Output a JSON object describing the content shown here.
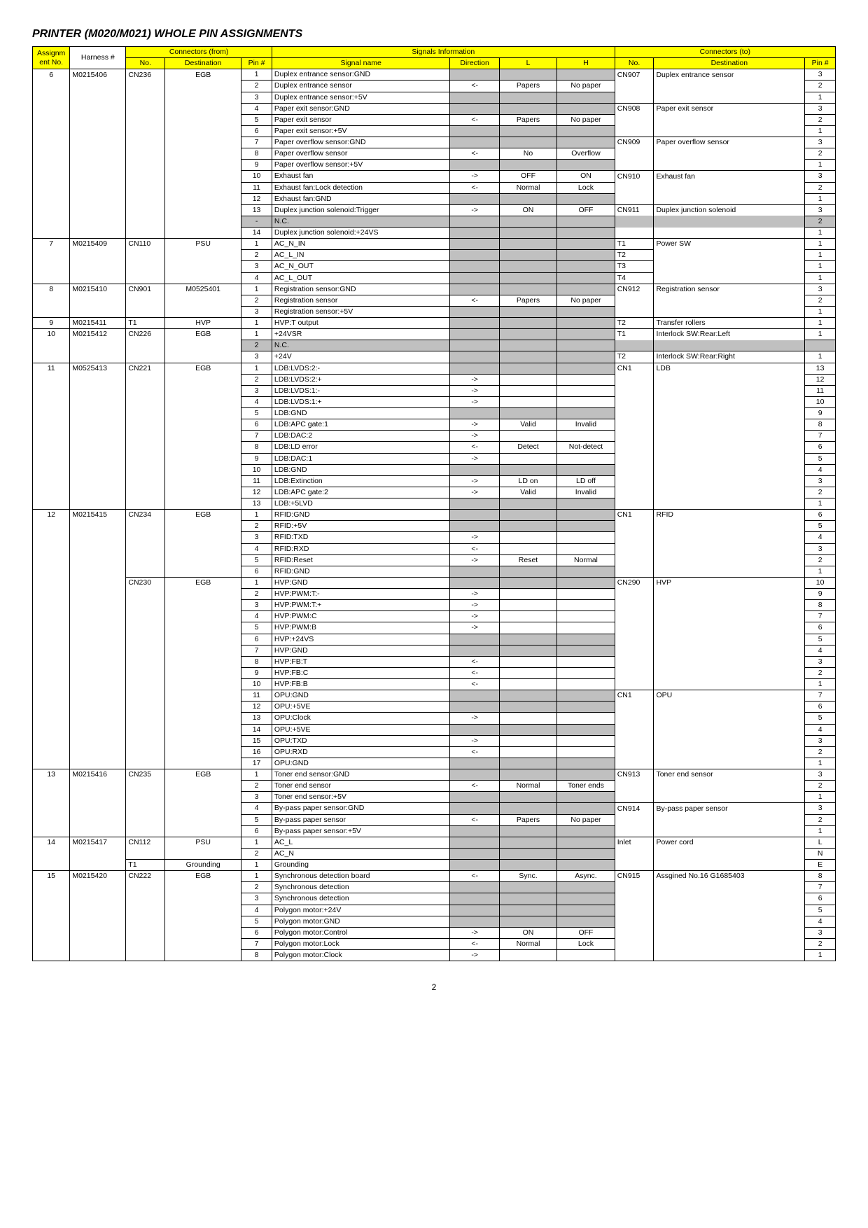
{
  "title": "PRINTER (M020/M021) WHOLE PIN ASSIGNMENTS",
  "page_number": "2",
  "header_bg": "#ffff00",
  "gray_bg": "#c0c0c0",
  "columns": {
    "group_from": "Connectors (from)",
    "group_sig": "Signals Information",
    "group_to": "Connectors (to)",
    "h1": "Assignm ent No.",
    "h2": "Harness #",
    "h3": "No.",
    "h4": "Destination",
    "h5": "Pin #",
    "h6": "Signal   name",
    "h7": "Direction",
    "h8": "L",
    "h9": "H",
    "h10": "No.",
    "h11": "Destination",
    "h12": "Pin #"
  },
  "rows": [
    {
      "a": "6",
      "h": "M0215406",
      "fno": "CN236",
      "fd": "EGB",
      "pin": "1",
      "sig": "Duplex entrance sensor:GND",
      "dir": "",
      "L": "",
      "H": "",
      "tno": "CN907",
      "td": "Duplex entrance sensor",
      "tp": "3",
      "gray": true
    },
    {
      "a": "",
      "h": "",
      "fno": "",
      "fd": "",
      "pin": "2",
      "sig": "Duplex entrance sensor",
      "dir": "<-",
      "L": "Papers",
      "H": "No paper",
      "tno": "",
      "td": "",
      "tp": "2"
    },
    {
      "a": "",
      "h": "",
      "fno": "",
      "fd": "",
      "pin": "3",
      "sig": "Duplex entrance sensor:+5V",
      "dir": "",
      "L": "",
      "H": "",
      "tno": "",
      "td": "",
      "tp": "1",
      "gray": true
    },
    {
      "a": "",
      "h": "",
      "fno": "",
      "fd": "",
      "pin": "4",
      "sig": "Paper exit sensor:GND",
      "dir": "",
      "L": "",
      "H": "",
      "tno": "CN908",
      "td": "Paper exit sensor",
      "tp": "3",
      "gray": true
    },
    {
      "a": "",
      "h": "",
      "fno": "",
      "fd": "",
      "pin": "5",
      "sig": "Paper exit sensor",
      "dir": "<-",
      "L": "Papers",
      "H": "No paper",
      "tno": "",
      "td": "",
      "tp": "2"
    },
    {
      "a": "",
      "h": "",
      "fno": "",
      "fd": "",
      "pin": "6",
      "sig": "Paper exit sensor:+5V",
      "dir": "",
      "L": "",
      "H": "",
      "tno": "",
      "td": "",
      "tp": "1",
      "gray": true
    },
    {
      "a": "",
      "h": "",
      "fno": "",
      "fd": "",
      "pin": "7",
      "sig": "Paper overflow sensor:GND",
      "dir": "",
      "L": "",
      "H": "",
      "tno": "CN909",
      "td": "Paper overflow sensor",
      "tp": "3",
      "gray": true
    },
    {
      "a": "",
      "h": "",
      "fno": "",
      "fd": "",
      "pin": "8",
      "sig": "Paper overflow sensor",
      "dir": "<-",
      "L": "No",
      "H": "Overflow",
      "tno": "",
      "td": "",
      "tp": "2"
    },
    {
      "a": "",
      "h": "",
      "fno": "",
      "fd": "",
      "pin": "9",
      "sig": "Paper overflow sensor:+5V",
      "dir": "",
      "L": "",
      "H": "",
      "tno": "",
      "td": "",
      "tp": "1",
      "gray": true
    },
    {
      "a": "",
      "h": "",
      "fno": "",
      "fd": "",
      "pin": "10",
      "sig": "Exhaust fan",
      "dir": "->",
      "L": "OFF",
      "H": "ON",
      "tno": "CN910",
      "td": "Exhaust fan",
      "tp": "3"
    },
    {
      "a": "",
      "h": "",
      "fno": "",
      "fd": "",
      "pin": "11",
      "sig": "Exhaust fan:Lock detection",
      "dir": "<-",
      "L": "Normal",
      "H": "Lock",
      "tno": "",
      "td": "",
      "tp": "2"
    },
    {
      "a": "",
      "h": "",
      "fno": "",
      "fd": "",
      "pin": "12",
      "sig": "Exhaust fan:GND",
      "dir": "",
      "L": "",
      "H": "",
      "tno": "",
      "td": "",
      "tp": "1",
      "gray": true
    },
    {
      "a": "",
      "h": "",
      "fno": "",
      "fd": "",
      "pin": "13",
      "sig": "Duplex junction solenoid:Trigger",
      "dir": "->",
      "L": "ON",
      "H": "OFF",
      "tno": "CN911",
      "td": "Duplex junction solenoid",
      "tp": "3"
    },
    {
      "a": "",
      "h": "",
      "fno": "",
      "fd": "",
      "pin": "-",
      "sig": "N.C.",
      "dir": "",
      "L": "",
      "H": "",
      "tno": "",
      "td": "",
      "tp": "2",
      "nc": true
    },
    {
      "a": "",
      "h": "",
      "fno": "",
      "fd": "",
      "pin": "14",
      "sig": "Duplex junction solenoid:+24VS",
      "dir": "",
      "L": "",
      "H": "",
      "tno": "",
      "td": "",
      "tp": "1",
      "gray": true
    },
    {
      "a": "7",
      "h": "M0215409",
      "fno": "CN110",
      "fd": "PSU",
      "pin": "1",
      "sig": "AC_N_IN",
      "dir": "",
      "L": "",
      "H": "",
      "tno": "T1",
      "td": "Power SW",
      "tp": "1",
      "gray": true
    },
    {
      "a": "",
      "h": "",
      "fno": "",
      "fd": "",
      "pin": "2",
      "sig": "AC_L_IN",
      "dir": "",
      "L": "",
      "H": "",
      "tno": "T2",
      "td": "",
      "tp": "1",
      "gray": true
    },
    {
      "a": "",
      "h": "",
      "fno": "",
      "fd": "",
      "pin": "3",
      "sig": "AC_N_OUT",
      "dir": "",
      "L": "",
      "H": "",
      "tno": "T3",
      "td": "",
      "tp": "1",
      "gray": true
    },
    {
      "a": "",
      "h": "",
      "fno": "",
      "fd": "",
      "pin": "4",
      "sig": "AC_L_OUT",
      "dir": "",
      "L": "",
      "H": "",
      "tno": "T4",
      "td": "",
      "tp": "1",
      "gray": true
    },
    {
      "a": "8",
      "h": "M0215410",
      "fno": "CN901",
      "fd": "M0525401",
      "pin": "1",
      "sig": "Registration sensor:GND",
      "dir": "",
      "L": "",
      "H": "",
      "tno": "CN912",
      "td": "Registration sensor",
      "tp": "3",
      "gray": true
    },
    {
      "a": "",
      "h": "",
      "fno": "",
      "fd": "",
      "pin": "2",
      "sig": "Registration sensor",
      "dir": "<-",
      "L": "Papers",
      "H": "No paper",
      "tno": "",
      "td": "",
      "tp": "2"
    },
    {
      "a": "",
      "h": "",
      "fno": "",
      "fd": "",
      "pin": "3",
      "sig": "Registration sensor:+5V",
      "dir": "",
      "L": "",
      "H": "",
      "tno": "",
      "td": "",
      "tp": "1",
      "gray": true
    },
    {
      "a": "9",
      "h": "M0215411",
      "fno": "T1",
      "fd": "HVP",
      "pin": "1",
      "sig": "HVP:T output",
      "dir": "",
      "L": "",
      "H": "",
      "tno": "T2",
      "td": "Transfer rollers",
      "tp": "1",
      "gray": true
    },
    {
      "a": "10",
      "h": "M0215412",
      "fno": "CN226",
      "fd": "EGB",
      "pin": "1",
      "sig": "+24VSR",
      "dir": "",
      "L": "",
      "H": "",
      "tno": "T1",
      "td": "Interlock SW:Rear:Left",
      "tp": "1",
      "gray": true
    },
    {
      "a": "",
      "h": "",
      "fno": "",
      "fd": "",
      "pin": "2",
      "sig": "N.C.",
      "dir": "",
      "L": "",
      "H": "",
      "tno": "",
      "td": "",
      "tp": "",
      "nc": true
    },
    {
      "a": "",
      "h": "",
      "fno": "",
      "fd": "",
      "pin": "3",
      "sig": "+24V",
      "dir": "",
      "L": "",
      "H": "",
      "tno": "T2",
      "td": "Interlock SW:Rear:Right",
      "tp": "1",
      "gray": true
    },
    {
      "a": "11",
      "h": "M0525413",
      "fno": "CN221",
      "fd": "EGB",
      "pin": "1",
      "sig": "LDB:LVDS:2:-",
      "dir": "",
      "L": "",
      "H": "",
      "tno": "CN1",
      "td": "LDB",
      "tp": "13",
      "gray": true
    },
    {
      "a": "",
      "h": "",
      "fno": "",
      "fd": "",
      "pin": "2",
      "sig": "LDB:LVDS:2:+",
      "dir": "->",
      "L": "",
      "H": "",
      "tno": "",
      "td": "",
      "tp": "12"
    },
    {
      "a": "",
      "h": "",
      "fno": "",
      "fd": "",
      "pin": "3",
      "sig": "LDB:LVDS:1:-",
      "dir": "->",
      "L": "",
      "H": "",
      "tno": "",
      "td": "",
      "tp": "11"
    },
    {
      "a": "",
      "h": "",
      "fno": "",
      "fd": "",
      "pin": "4",
      "sig": "LDB:LVDS:1:+",
      "dir": "->",
      "L": "",
      "H": "",
      "tno": "",
      "td": "",
      "tp": "10"
    },
    {
      "a": "",
      "h": "",
      "fno": "",
      "fd": "",
      "pin": "5",
      "sig": "LDB:GND",
      "dir": "",
      "L": "",
      "H": "",
      "tno": "",
      "td": "",
      "tp": "9",
      "gray": true
    },
    {
      "a": "",
      "h": "",
      "fno": "",
      "fd": "",
      "pin": "6",
      "sig": "LDB:APC gate:1",
      "dir": "->",
      "L": "Valid",
      "H": "Invalid",
      "tno": "",
      "td": "",
      "tp": "8"
    },
    {
      "a": "",
      "h": "",
      "fno": "",
      "fd": "",
      "pin": "7",
      "sig": "LDB:DAC:2",
      "dir": "->",
      "L": "",
      "H": "",
      "tno": "",
      "td": "",
      "tp": "7"
    },
    {
      "a": "",
      "h": "",
      "fno": "",
      "fd": "",
      "pin": "8",
      "sig": "LDB:LD error",
      "dir": "<-",
      "L": "Detect",
      "H": "Not-detect",
      "tno": "",
      "td": "",
      "tp": "6"
    },
    {
      "a": "",
      "h": "",
      "fno": "",
      "fd": "",
      "pin": "9",
      "sig": "LDB:DAC:1",
      "dir": "->",
      "L": "",
      "H": "",
      "tno": "",
      "td": "",
      "tp": "5"
    },
    {
      "a": "",
      "h": "",
      "fno": "",
      "fd": "",
      "pin": "10",
      "sig": "LDB:GND",
      "dir": "",
      "L": "",
      "H": "",
      "tno": "",
      "td": "",
      "tp": "4",
      "gray": true
    },
    {
      "a": "",
      "h": "",
      "fno": "",
      "fd": "",
      "pin": "11",
      "sig": "LDB:Extinction",
      "dir": "->",
      "L": "LD on",
      "H": "LD off",
      "tno": "",
      "td": "",
      "tp": "3"
    },
    {
      "a": "",
      "h": "",
      "fno": "",
      "fd": "",
      "pin": "12",
      "sig": "LDB:APC gate:2",
      "dir": "->",
      "L": "Valid",
      "H": "Invalid",
      "tno": "",
      "td": "",
      "tp": "2"
    },
    {
      "a": "",
      "h": "",
      "fno": "",
      "fd": "",
      "pin": "13",
      "sig": "LDB:+5LVD",
      "dir": "",
      "L": "",
      "H": "",
      "tno": "",
      "td": "",
      "tp": "1",
      "gray": true
    },
    {
      "a": "12",
      "h": "M0215415",
      "fno": "CN234",
      "fd": "EGB",
      "pin": "1",
      "sig": "RFID:GND",
      "dir": "",
      "L": "",
      "H": "",
      "tno": "CN1",
      "td": "RFID",
      "tp": "6",
      "gray": true
    },
    {
      "a": "",
      "h": "",
      "fno": "",
      "fd": "",
      "pin": "2",
      "sig": "RFID:+5V",
      "dir": "",
      "L": "",
      "H": "",
      "tno": "",
      "td": "",
      "tp": "5",
      "gray": true
    },
    {
      "a": "",
      "h": "",
      "fno": "",
      "fd": "",
      "pin": "3",
      "sig": "RFID:TXD",
      "dir": "->",
      "L": "",
      "H": "",
      "tno": "",
      "td": "",
      "tp": "4"
    },
    {
      "a": "",
      "h": "",
      "fno": "",
      "fd": "",
      "pin": "4",
      "sig": "RFID:RXD",
      "dir": "<-",
      "L": "",
      "H": "",
      "tno": "",
      "td": "",
      "tp": "3"
    },
    {
      "a": "",
      "h": "",
      "fno": "",
      "fd": "",
      "pin": "5",
      "sig": "RFID:Reset",
      "dir": "->",
      "L": "Reset",
      "H": "Normal",
      "tno": "",
      "td": "",
      "tp": "2"
    },
    {
      "a": "",
      "h": "",
      "fno": "",
      "fd": "",
      "pin": "6",
      "sig": "RFID:GND",
      "dir": "",
      "L": "",
      "H": "",
      "tno": "",
      "td": "",
      "tp": "1",
      "gray": true
    },
    {
      "a": "",
      "h": "",
      "fno": "CN230",
      "fd": "EGB",
      "pin": "1",
      "sig": "HVP:GND",
      "dir": "",
      "L": "",
      "H": "",
      "tno": "CN290",
      "td": "HVP",
      "tp": "10",
      "gray": true
    },
    {
      "a": "",
      "h": "",
      "fno": "",
      "fd": "",
      "pin": "2",
      "sig": "HVP:PWM:T:-",
      "dir": "->",
      "L": "",
      "H": "",
      "tno": "",
      "td": "",
      "tp": "9"
    },
    {
      "a": "",
      "h": "",
      "fno": "",
      "fd": "",
      "pin": "3",
      "sig": "HVP:PWM:T:+",
      "dir": "->",
      "L": "",
      "H": "",
      "tno": "",
      "td": "",
      "tp": "8"
    },
    {
      "a": "",
      "h": "",
      "fno": "",
      "fd": "",
      "pin": "4",
      "sig": "HVP:PWM:C",
      "dir": "->",
      "L": "",
      "H": "",
      "tno": "",
      "td": "",
      "tp": "7"
    },
    {
      "a": "",
      "h": "",
      "fno": "",
      "fd": "",
      "pin": "5",
      "sig": "HVP:PWM:B",
      "dir": "->",
      "L": "",
      "H": "",
      "tno": "",
      "td": "",
      "tp": "6"
    },
    {
      "a": "",
      "h": "",
      "fno": "",
      "fd": "",
      "pin": "6",
      "sig": "HVP:+24VS",
      "dir": "",
      "L": "",
      "H": "",
      "tno": "",
      "td": "",
      "tp": "5",
      "gray": true
    },
    {
      "a": "",
      "h": "",
      "fno": "",
      "fd": "",
      "pin": "7",
      "sig": "HVP:GND",
      "dir": "",
      "L": "",
      "H": "",
      "tno": "",
      "td": "",
      "tp": "4",
      "gray": true
    },
    {
      "a": "",
      "h": "",
      "fno": "",
      "fd": "",
      "pin": "8",
      "sig": "HVP:FB:T",
      "dir": "<-",
      "L": "",
      "H": "",
      "tno": "",
      "td": "",
      "tp": "3"
    },
    {
      "a": "",
      "h": "",
      "fno": "",
      "fd": "",
      "pin": "9",
      "sig": "HVP:FB:C",
      "dir": "<-",
      "L": "",
      "H": "",
      "tno": "",
      "td": "",
      "tp": "2"
    },
    {
      "a": "",
      "h": "",
      "fno": "",
      "fd": "",
      "pin": "10",
      "sig": "HVP:FB:B",
      "dir": "<-",
      "L": "",
      "H": "",
      "tno": "",
      "td": "",
      "tp": "1"
    },
    {
      "a": "",
      "h": "",
      "fno": "",
      "fd": "",
      "pin": "11",
      "sig": "OPU:GND",
      "dir": "",
      "L": "",
      "H": "",
      "tno": "CN1",
      "td": "OPU",
      "tp": "7",
      "gray": true
    },
    {
      "a": "",
      "h": "",
      "fno": "",
      "fd": "",
      "pin": "12",
      "sig": "OPU:+5VE",
      "dir": "",
      "L": "",
      "H": "",
      "tno": "",
      "td": "",
      "tp": "6",
      "gray": true
    },
    {
      "a": "",
      "h": "",
      "fno": "",
      "fd": "",
      "pin": "13",
      "sig": "OPU:Clock",
      "dir": "->",
      "L": "",
      "H": "",
      "tno": "",
      "td": "",
      "tp": "5"
    },
    {
      "a": "",
      "h": "",
      "fno": "",
      "fd": "",
      "pin": "14",
      "sig": "OPU:+5VE",
      "dir": "",
      "L": "",
      "H": "",
      "tno": "",
      "td": "",
      "tp": "4",
      "gray": true
    },
    {
      "a": "",
      "h": "",
      "fno": "",
      "fd": "",
      "pin": "15",
      "sig": "OPU:TXD",
      "dir": "->",
      "L": "",
      "H": "",
      "tno": "",
      "td": "",
      "tp": "3"
    },
    {
      "a": "",
      "h": "",
      "fno": "",
      "fd": "",
      "pin": "16",
      "sig": "OPU:RXD",
      "dir": "<-",
      "L": "",
      "H": "",
      "tno": "",
      "td": "",
      "tp": "2"
    },
    {
      "a": "",
      "h": "",
      "fno": "",
      "fd": "",
      "pin": "17",
      "sig": "OPU:GND",
      "dir": "",
      "L": "",
      "H": "",
      "tno": "",
      "td": "",
      "tp": "1",
      "gray": true
    },
    {
      "a": "13",
      "h": "M0215416",
      "fno": "CN235",
      "fd": "EGB",
      "pin": "1",
      "sig": "Toner end sensor:GND",
      "dir": "",
      "L": "",
      "H": "",
      "tno": "CN913",
      "td": "Toner end sensor",
      "tp": "3",
      "gray": true
    },
    {
      "a": "",
      "h": "",
      "fno": "",
      "fd": "",
      "pin": "2",
      "sig": "Toner end sensor",
      "dir": "<-",
      "L": "Normal",
      "H": "Toner ends",
      "tno": "",
      "td": "",
      "tp": "2"
    },
    {
      "a": "",
      "h": "",
      "fno": "",
      "fd": "",
      "pin": "3",
      "sig": "Toner end sensor:+5V",
      "dir": "",
      "L": "",
      "H": "",
      "tno": "",
      "td": "",
      "tp": "1",
      "gray": true
    },
    {
      "a": "",
      "h": "",
      "fno": "",
      "fd": "",
      "pin": "4",
      "sig": "By-pass paper sensor:GND",
      "dir": "",
      "L": "",
      "H": "",
      "tno": "CN914",
      "td": "By-pass paper sensor",
      "tp": "3",
      "gray": true
    },
    {
      "a": "",
      "h": "",
      "fno": "",
      "fd": "",
      "pin": "5",
      "sig": "By-pass paper sensor",
      "dir": "<-",
      "L": "Papers",
      "H": "No paper",
      "tno": "",
      "td": "",
      "tp": "2"
    },
    {
      "a": "",
      "h": "",
      "fno": "",
      "fd": "",
      "pin": "6",
      "sig": "By-pass paper sensor:+5V",
      "dir": "",
      "L": "",
      "H": "",
      "tno": "",
      "td": "",
      "tp": "1",
      "gray": true
    },
    {
      "a": "14",
      "h": "M0215417",
      "fno": "CN112",
      "fd": "PSU",
      "pin": "1",
      "sig": "AC_L",
      "dir": "",
      "L": "",
      "H": "",
      "tno": "Inlet",
      "td": "Power cord",
      "tp": "L",
      "gray": true
    },
    {
      "a": "",
      "h": "",
      "fno": "",
      "fd": "",
      "pin": "2",
      "sig": "AC_N",
      "dir": "",
      "L": "",
      "H": "",
      "tno": "",
      "td": "",
      "tp": "N",
      "gray": true
    },
    {
      "a": "",
      "h": "",
      "fno": "T1",
      "fd": "Grounding",
      "pin": "1",
      "sig": "Grounding",
      "dir": "",
      "L": "",
      "H": "",
      "tno": "",
      "td": "",
      "tp": "E",
      "gray": true
    },
    {
      "a": "15",
      "h": "M0215420",
      "fno": "CN222",
      "fd": "EGB",
      "pin": "1",
      "sig": "Synchronous detection board",
      "dir": "<-",
      "L": "Sync.",
      "H": "Async.",
      "tno": "CN915",
      "td": "Assgined No.16 G1685403",
      "tp": "8"
    },
    {
      "a": "",
      "h": "",
      "fno": "",
      "fd": "",
      "pin": "2",
      "sig": "Synchronous detection",
      "dir": "",
      "L": "",
      "H": "",
      "tno": "",
      "td": "",
      "tp": "7",
      "gray": true
    },
    {
      "a": "",
      "h": "",
      "fno": "",
      "fd": "",
      "pin": "3",
      "sig": "Synchronous detection",
      "dir": "",
      "L": "",
      "H": "",
      "tno": "",
      "td": "",
      "tp": "6",
      "gray": true
    },
    {
      "a": "",
      "h": "",
      "fno": "",
      "fd": "",
      "pin": "4",
      "sig": "Polygon motor:+24V",
      "dir": "",
      "L": "",
      "H": "",
      "tno": "",
      "td": "",
      "tp": "5",
      "gray": true
    },
    {
      "a": "",
      "h": "",
      "fno": "",
      "fd": "",
      "pin": "5",
      "sig": "Polygon motor:GND",
      "dir": "",
      "L": "",
      "H": "",
      "tno": "",
      "td": "",
      "tp": "4",
      "gray": true
    },
    {
      "a": "",
      "h": "",
      "fno": "",
      "fd": "",
      "pin": "6",
      "sig": "Polygon motor:Control",
      "dir": "->",
      "L": "ON",
      "H": "OFF",
      "tno": "",
      "td": "",
      "tp": "3"
    },
    {
      "a": "",
      "h": "",
      "fno": "",
      "fd": "",
      "pin": "7",
      "sig": "Polygon motor:Lock",
      "dir": "<-",
      "L": "Normal",
      "H": "Lock",
      "tno": "",
      "td": "",
      "tp": "2"
    },
    {
      "a": "",
      "h": "",
      "fno": "",
      "fd": "",
      "pin": "8",
      "sig": "Polygon motor:Clock",
      "dir": "->",
      "L": "",
      "H": "",
      "tno": "",
      "td": "",
      "tp": "1"
    }
  ]
}
